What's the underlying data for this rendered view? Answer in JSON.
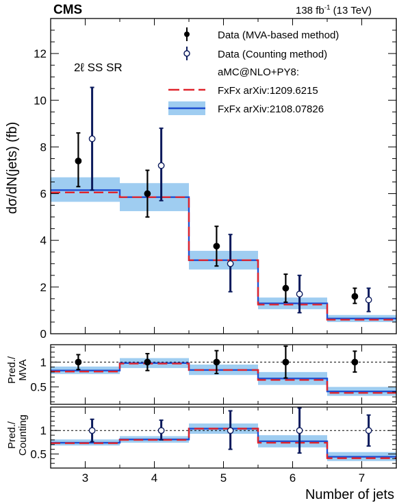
{
  "header": {
    "experiment": "CMS",
    "lumi": "138 fb",
    "lumi_exp": "-1",
    "energy": "(13 TeV)"
  },
  "region_label": "2ℓ SS SR",
  "legend": {
    "data_mva": "Data (MVA-based method)",
    "data_count": "Data (Counting method)",
    "mc_header": "aMC@NLO+PY8:",
    "pred_fxfx_old": "FxFx arXiv:1209.6215",
    "pred_fxfx_new": "FxFx arXiv:2108.07826"
  },
  "colors": {
    "data_mva": "#000000",
    "data_count": "#0b1a5c",
    "pred_old": "#e0242c",
    "pred_new": "#1f4fd0",
    "band": "#9fcdf1",
    "ref_line": "#000000"
  },
  "chart_data": [
    {
      "type": "line",
      "panel": "main",
      "ylabel": "dσ/dN(jets) (fb)",
      "xlabel": "",
      "xlim": [
        2.5,
        7.5
      ],
      "ylim": [
        0,
        13.5
      ],
      "yticks": [
        0,
        2,
        4,
        6,
        8,
        10,
        12
      ],
      "xticks": [
        3,
        4,
        5,
        6,
        7
      ],
      "bins": [
        3,
        4,
        5,
        6,
        7
      ],
      "series": [
        {
          "name": "Data (MVA-based method)",
          "style": "filled-marker",
          "x": [
            2.9,
            3.9,
            4.9,
            5.9,
            6.9
          ],
          "y": [
            7.4,
            6.0,
            3.75,
            1.95,
            1.6
          ],
          "err_low": [
            1.1,
            1.0,
            0.85,
            0.6,
            0.3
          ],
          "err_high": [
            1.2,
            1.0,
            0.85,
            0.6,
            0.35
          ]
        },
        {
          "name": "Data (Counting method)",
          "style": "open-marker",
          "x": [
            3.1,
            4.1,
            5.1,
            6.1,
            7.1
          ],
          "y": [
            8.35,
            7.2,
            3.0,
            1.7,
            1.45
          ],
          "err_low": [
            2.2,
            1.5,
            1.2,
            0.8,
            0.5
          ],
          "err_high": [
            2.2,
            1.6,
            1.25,
            0.8,
            0.5
          ]
        },
        {
          "name": "FxFx arXiv:1209.6215",
          "style": "dashed-step",
          "values": [
            6.05,
            5.85,
            3.15,
            1.25,
            0.6
          ]
        },
        {
          "name": "FxFx arXiv:2108.07826",
          "style": "step-band",
          "values": [
            6.15,
            5.85,
            3.15,
            1.3,
            0.65
          ],
          "band_low": [
            5.65,
            5.25,
            2.75,
            1.05,
            0.5
          ],
          "band_high": [
            6.7,
            6.45,
            3.55,
            1.55,
            0.8
          ]
        }
      ]
    },
    {
      "type": "line",
      "panel": "ratio-mva",
      "ylabel": "Pred./ MVA",
      "xlim": [
        2.5,
        7.5
      ],
      "ylim": [
        0.15,
        1.35
      ],
      "yticks": [
        0.5,
        1
      ],
      "series": [
        {
          "name": "Data (MVA-based method)",
          "style": "filled-marker",
          "x": [
            2.9,
            3.9,
            4.9,
            5.9,
            6.9
          ],
          "y": [
            1.0,
            1.0,
            1.0,
            1.0,
            1.0
          ],
          "err_low": [
            0.15,
            0.17,
            0.23,
            0.32,
            0.2
          ],
          "err_high": [
            0.15,
            0.17,
            0.23,
            0.32,
            0.22
          ]
        },
        {
          "name": "FxFx arXiv:1209.6215",
          "style": "dashed-step",
          "values": [
            0.81,
            0.97,
            0.84,
            0.64,
            0.38
          ]
        },
        {
          "name": "FxFx arXiv:2108.07826",
          "style": "step-band",
          "values": [
            0.83,
            0.98,
            0.84,
            0.67,
            0.41
          ],
          "band_low": [
            0.76,
            0.88,
            0.74,
            0.54,
            0.32
          ],
          "band_high": [
            0.91,
            1.08,
            0.95,
            0.8,
            0.5
          ]
        }
      ]
    },
    {
      "type": "line",
      "panel": "ratio-counting",
      "ylabel": "Pred./ Counting",
      "xlabel": "Number of jets",
      "xlim": [
        2.5,
        7.5
      ],
      "ylim": [
        0.2,
        1.5
      ],
      "yticks": [
        0.5,
        1
      ],
      "xticks": [
        3,
        4,
        5,
        6,
        7
      ],
      "series": [
        {
          "name": "Data (Counting method)",
          "style": "open-marker",
          "x": [
            3.1,
            4.1,
            5.1,
            6.1,
            7.1
          ],
          "y": [
            1.0,
            1.0,
            1.0,
            1.0,
            1.0
          ],
          "err_low": [
            0.24,
            0.2,
            0.4,
            0.48,
            0.33
          ],
          "err_high": [
            0.24,
            0.22,
            0.42,
            0.48,
            0.33
          ]
        },
        {
          "name": "FxFx arXiv:1209.6215",
          "style": "dashed-step",
          "values": [
            0.73,
            0.8,
            1.04,
            0.74,
            0.41
          ]
        },
        {
          "name": "FxFx arXiv:2108.07826",
          "style": "step-band",
          "values": [
            0.74,
            0.81,
            1.04,
            0.77,
            0.44
          ],
          "band_low": [
            0.68,
            0.74,
            0.93,
            0.64,
            0.35
          ],
          "band_high": [
            0.81,
            0.88,
            1.15,
            0.9,
            0.54
          ]
        }
      ]
    }
  ]
}
